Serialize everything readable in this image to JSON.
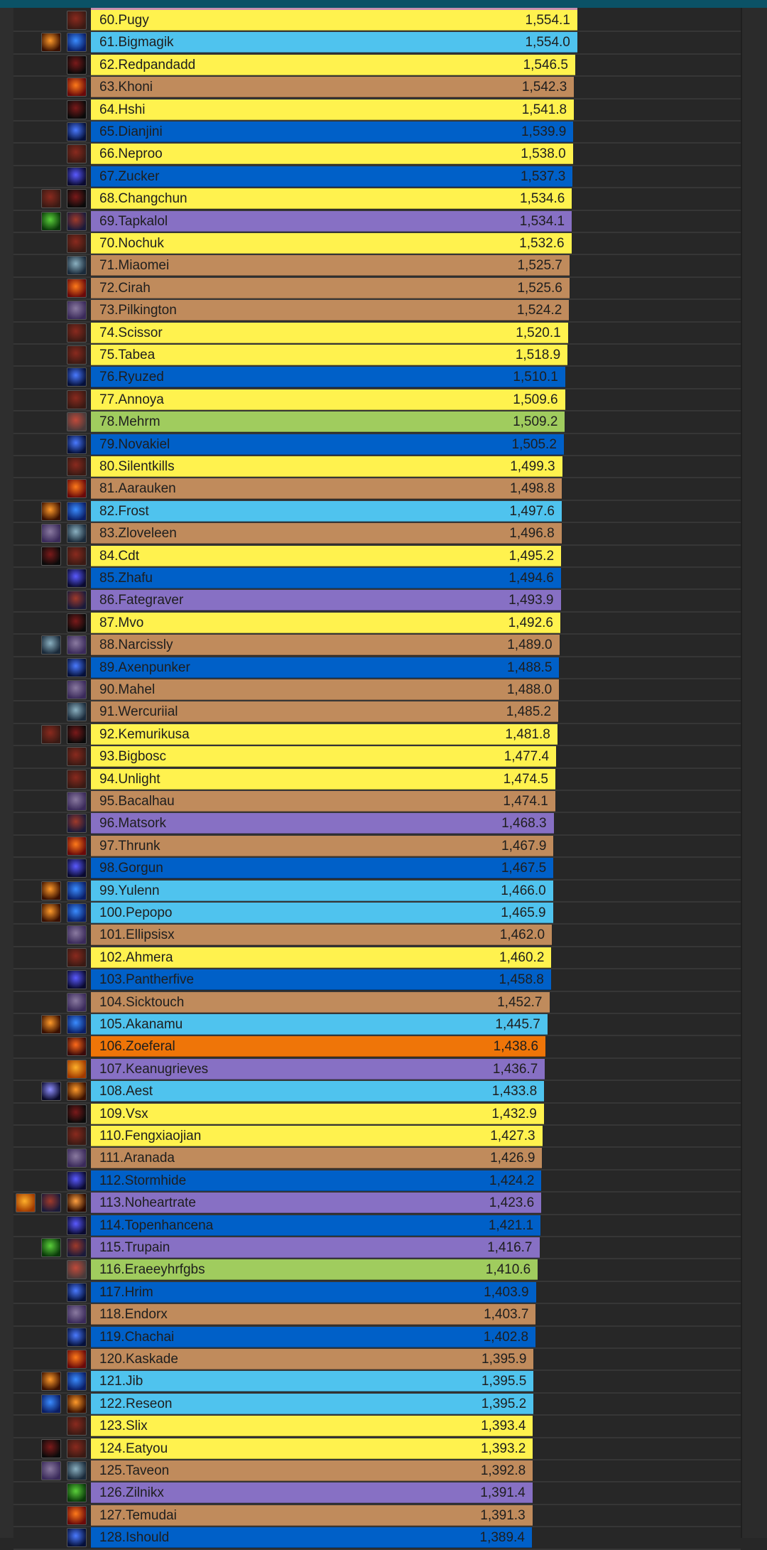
{
  "class_colors": {
    "rogue": "#fff24e",
    "mage": "#4fc3ee",
    "warrior": "#c08b5c",
    "shaman": "#0060c8",
    "warlock": "#8770c4",
    "hunter": "#a0cc5e",
    "druid": "#ef7508"
  },
  "icon_colors": {
    "rogue-face-icon": [
      "#8a2a1e",
      "#3a1a14"
    ],
    "fire-icon": [
      "#ff9a2a",
      "#3a1000"
    ],
    "frost-icon": [
      "#3a8cff",
      "#0a1e66"
    ],
    "blade-icon": [
      "#7a1a1a",
      "#0a0a0a"
    ],
    "fury-icon": [
      "#ff7a1a",
      "#6a0a0a"
    ],
    "lightning-icon": [
      "#4a7aff",
      "#05103a"
    ],
    "shield-icon": [
      "#5a5aff",
      "#0a0a30"
    ],
    "mace-icon": [
      "#8a7aa0",
      "#3a2a5a"
    ],
    "sword-icon": [
      "#8ab0c0",
      "#1a2a3a"
    ],
    "demon-icon": [
      "#a03a2a",
      "#1a1a3a"
    ],
    "green-beast-icon": [
      "#5ad03a",
      "#0a3a0a"
    ],
    "axe-icon": [
      "#c04a3a",
      "#4a3a3a"
    ],
    "druid-icon": [
      "#ff6a1a",
      "#3a0a0a"
    ],
    "skull-icon": [
      "#ffb02a",
      "#a03a00"
    ],
    "fire-bolts-icon": [
      "#ffa040",
      "#2a0a00"
    ],
    "frost-spear-icon": [
      "#9090ff",
      "#0a0a2a"
    ]
  },
  "rows": [
    {
      "label": "60.Pugy",
      "value": "1,554.1",
      "v": 1554.1,
      "cls": "rogue",
      "icons": [
        "rogue-face-icon"
      ]
    },
    {
      "label": "61.Bigmagik",
      "value": "1,554.0",
      "v": 1554.0,
      "cls": "mage",
      "icons": [
        "fire-icon",
        "frost-icon"
      ]
    },
    {
      "label": "62.Redpandadd",
      "value": "1,546.5",
      "v": 1546.5,
      "cls": "rogue",
      "icons": [
        "blade-icon"
      ]
    },
    {
      "label": "63.Khoni",
      "value": "1,542.3",
      "v": 1542.3,
      "cls": "warrior",
      "icons": [
        "fury-icon"
      ]
    },
    {
      "label": "64.Hshi",
      "value": "1,541.8",
      "v": 1541.8,
      "cls": "rogue",
      "icons": [
        "blade-icon"
      ]
    },
    {
      "label": "65.Dianjini",
      "value": "1,539.9",
      "v": 1539.9,
      "cls": "shaman",
      "icons": [
        "lightning-icon"
      ]
    },
    {
      "label": "66.Neproo",
      "value": "1,538.0",
      "v": 1538.0,
      "cls": "rogue",
      "icons": [
        "rogue-face-icon"
      ]
    },
    {
      "label": "67.Zucker",
      "value": "1,537.3",
      "v": 1537.3,
      "cls": "shaman",
      "icons": [
        "shield-icon"
      ]
    },
    {
      "label": "68.Changchun",
      "value": "1,534.6",
      "v": 1534.6,
      "cls": "rogue",
      "icons": [
        "rogue-face-icon",
        "blade-icon"
      ]
    },
    {
      "label": "69.Tapkalol",
      "value": "1,534.1",
      "v": 1534.1,
      "cls": "warlock",
      "icons": [
        "green-beast-icon",
        "demon-icon"
      ]
    },
    {
      "label": "70.Nochuk",
      "value": "1,532.6",
      "v": 1532.6,
      "cls": "rogue",
      "icons": [
        "rogue-face-icon"
      ]
    },
    {
      "label": "71.Miaomei",
      "value": "1,525.7",
      "v": 1525.7,
      "cls": "warrior",
      "icons": [
        "sword-icon"
      ]
    },
    {
      "label": "72.Cirah",
      "value": "1,525.6",
      "v": 1525.6,
      "cls": "warrior",
      "icons": [
        "fury-icon"
      ]
    },
    {
      "label": "73.Pilkington",
      "value": "1,524.2",
      "v": 1524.2,
      "cls": "warrior",
      "icons": [
        "mace-icon"
      ]
    },
    {
      "label": "74.Scissor",
      "value": "1,520.1",
      "v": 1520.1,
      "cls": "rogue",
      "icons": [
        "rogue-face-icon"
      ]
    },
    {
      "label": "75.Tabea",
      "value": "1,518.9",
      "v": 1518.9,
      "cls": "rogue",
      "icons": [
        "rogue-face-icon"
      ]
    },
    {
      "label": "76.Ryuzed",
      "value": "1,510.1",
      "v": 1510.1,
      "cls": "shaman",
      "icons": [
        "lightning-icon"
      ]
    },
    {
      "label": "77.Annoya",
      "value": "1,509.6",
      "v": 1509.6,
      "cls": "rogue",
      "icons": [
        "rogue-face-icon"
      ]
    },
    {
      "label": "78.Mehrm",
      "value": "1,509.2",
      "v": 1509.2,
      "cls": "hunter",
      "icons": [
        "axe-icon"
      ]
    },
    {
      "label": "79.Novakiel",
      "value": "1,505.2",
      "v": 1505.2,
      "cls": "shaman",
      "icons": [
        "lightning-icon"
      ]
    },
    {
      "label": "80.Silentkills",
      "value": "1,499.3",
      "v": 1499.3,
      "cls": "rogue",
      "icons": [
        "rogue-face-icon"
      ]
    },
    {
      "label": "81.Aarauken",
      "value": "1,498.8",
      "v": 1498.8,
      "cls": "warrior",
      "icons": [
        "fury-icon"
      ]
    },
    {
      "label": "82.Frost",
      "value": "1,497.6",
      "v": 1497.6,
      "cls": "mage",
      "icons": [
        "fire-icon",
        "frost-icon"
      ]
    },
    {
      "label": "83.Zloveleen",
      "value": "1,496.8",
      "v": 1496.8,
      "cls": "warrior",
      "icons": [
        "mace-icon",
        "sword-icon"
      ]
    },
    {
      "label": "84.Cdt",
      "value": "1,495.2",
      "v": 1495.2,
      "cls": "rogue",
      "icons": [
        "blade-icon",
        "rogue-face-icon"
      ]
    },
    {
      "label": "85.Zhafu",
      "value": "1,494.6",
      "v": 1494.6,
      "cls": "shaman",
      "icons": [
        "shield-icon"
      ]
    },
    {
      "label": "86.Fategraver",
      "value": "1,493.9",
      "v": 1493.9,
      "cls": "warlock",
      "icons": [
        "demon-icon"
      ]
    },
    {
      "label": "87.Mvo",
      "value": "1,492.6",
      "v": 1492.6,
      "cls": "rogue",
      "icons": [
        "blade-icon"
      ]
    },
    {
      "label": "88.Narcissly",
      "value": "1,489.0",
      "v": 1489.0,
      "cls": "warrior",
      "icons": [
        "sword-icon",
        "mace-icon"
      ]
    },
    {
      "label": "89.Axenpunker",
      "value": "1,488.5",
      "v": 1488.5,
      "cls": "shaman",
      "icons": [
        "lightning-icon"
      ]
    },
    {
      "label": "90.Mahel",
      "value": "1,488.0",
      "v": 1488.0,
      "cls": "warrior",
      "icons": [
        "mace-icon"
      ]
    },
    {
      "label": "91.Wercuriial",
      "value": "1,485.2",
      "v": 1485.2,
      "cls": "warrior",
      "icons": [
        "sword-icon"
      ]
    },
    {
      "label": "92.Kemurikusa",
      "value": "1,481.8",
      "v": 1481.8,
      "cls": "rogue",
      "icons": [
        "rogue-face-icon",
        "blade-icon"
      ]
    },
    {
      "label": "93.Bigbosc",
      "value": "1,477.4",
      "v": 1477.4,
      "cls": "rogue",
      "icons": [
        "rogue-face-icon"
      ]
    },
    {
      "label": "94.Unlight",
      "value": "1,474.5",
      "v": 1474.5,
      "cls": "rogue",
      "icons": [
        "rogue-face-icon"
      ]
    },
    {
      "label": "95.Bacalhau",
      "value": "1,474.1",
      "v": 1474.1,
      "cls": "warrior",
      "icons": [
        "mace-icon"
      ]
    },
    {
      "label": "96.Matsork",
      "value": "1,468.3",
      "v": 1468.3,
      "cls": "warlock",
      "icons": [
        "demon-icon"
      ]
    },
    {
      "label": "97.Thrunk",
      "value": "1,467.9",
      "v": 1467.9,
      "cls": "warrior",
      "icons": [
        "fury-icon"
      ]
    },
    {
      "label": "98.Gorgun",
      "value": "1,467.5",
      "v": 1467.5,
      "cls": "shaman",
      "icons": [
        "shield-icon"
      ]
    },
    {
      "label": "99.Yulenn",
      "value": "1,466.0",
      "v": 1466.0,
      "cls": "mage",
      "icons": [
        "fire-icon",
        "frost-icon"
      ]
    },
    {
      "label": "100.Pepopo",
      "value": "1,465.9",
      "v": 1465.9,
      "cls": "mage",
      "icons": [
        "fire-icon",
        "frost-icon"
      ]
    },
    {
      "label": "101.Ellipsisx",
      "value": "1,462.0",
      "v": 1462.0,
      "cls": "warrior",
      "icons": [
        "mace-icon"
      ]
    },
    {
      "label": "102.Ahmera",
      "value": "1,460.2",
      "v": 1460.2,
      "cls": "rogue",
      "icons": [
        "rogue-face-icon"
      ]
    },
    {
      "label": "103.Pantherfive",
      "value": "1,458.8",
      "v": 1458.8,
      "cls": "shaman",
      "icons": [
        "shield-icon"
      ]
    },
    {
      "label": "104.Sicktouch",
      "value": "1,452.7",
      "v": 1452.7,
      "cls": "warrior",
      "icons": [
        "mace-icon"
      ]
    },
    {
      "label": "105.Akanamu",
      "value": "1,445.7",
      "v": 1445.7,
      "cls": "mage",
      "icons": [
        "fire-icon",
        "frost-icon"
      ]
    },
    {
      "label": "106.Zoeferal",
      "value": "1,438.6",
      "v": 1438.6,
      "cls": "druid",
      "icons": [
        "druid-icon"
      ]
    },
    {
      "label": "107.Keanugrieves",
      "value": "1,436.7",
      "v": 1436.7,
      "cls": "warlock",
      "icons": [
        "skull-icon"
      ]
    },
    {
      "label": "108.Aest",
      "value": "1,433.8",
      "v": 1433.8,
      "cls": "mage",
      "icons": [
        "frost-spear-icon",
        "fire-icon"
      ]
    },
    {
      "label": "109.Vsx",
      "value": "1,432.9",
      "v": 1432.9,
      "cls": "rogue",
      "icons": [
        "blade-icon"
      ]
    },
    {
      "label": "110.Fengxiaojian",
      "value": "1,427.3",
      "v": 1427.3,
      "cls": "rogue",
      "icons": [
        "rogue-face-icon"
      ]
    },
    {
      "label": "111.Aranada",
      "value": "1,426.9",
      "v": 1426.9,
      "cls": "warrior",
      "icons": [
        "mace-icon"
      ]
    },
    {
      "label": "112.Stormhide",
      "value": "1,424.2",
      "v": 1424.2,
      "cls": "shaman",
      "icons": [
        "shield-icon"
      ]
    },
    {
      "label": "113.Noheartrate",
      "value": "1,423.6",
      "v": 1423.6,
      "cls": "warlock",
      "icons": [
        "skull-icon",
        "demon-icon",
        "fire-bolts-icon"
      ]
    },
    {
      "label": "114.Topenhancena",
      "value": "1,421.1",
      "v": 1421.1,
      "cls": "shaman",
      "icons": [
        "shield-icon"
      ]
    },
    {
      "label": "115.Trupain",
      "value": "1,416.7",
      "v": 1416.7,
      "cls": "warlock",
      "icons": [
        "green-beast-icon",
        "demon-icon"
      ]
    },
    {
      "label": "116.Eraeeyhrfgbs",
      "value": "1,410.6",
      "v": 1410.6,
      "cls": "hunter",
      "icons": [
        "axe-icon"
      ]
    },
    {
      "label": "117.Hrim",
      "value": "1,403.9",
      "v": 1403.9,
      "cls": "shaman",
      "icons": [
        "lightning-icon"
      ]
    },
    {
      "label": "118.Endorx",
      "value": "1,403.7",
      "v": 1403.7,
      "cls": "warrior",
      "icons": [
        "mace-icon"
      ]
    },
    {
      "label": "119.Chachai",
      "value": "1,402.8",
      "v": 1402.8,
      "cls": "shaman",
      "icons": [
        "lightning-icon"
      ]
    },
    {
      "label": "120.Kaskade",
      "value": "1,395.9",
      "v": 1395.9,
      "cls": "warrior",
      "icons": [
        "fury-icon"
      ]
    },
    {
      "label": "121.Jib",
      "value": "1,395.5",
      "v": 1395.5,
      "cls": "mage",
      "icons": [
        "fire-icon",
        "frost-icon"
      ]
    },
    {
      "label": "122.Reseon",
      "value": "1,395.2",
      "v": 1395.2,
      "cls": "mage",
      "icons": [
        "frost-icon",
        "fire-icon"
      ]
    },
    {
      "label": "123.Slix",
      "value": "1,393.4",
      "v": 1393.4,
      "cls": "rogue",
      "icons": [
        "rogue-face-icon"
      ]
    },
    {
      "label": "124.Eatyou",
      "value": "1,393.2",
      "v": 1393.2,
      "cls": "rogue",
      "icons": [
        "blade-icon",
        "rogue-face-icon"
      ]
    },
    {
      "label": "125.Taveon",
      "value": "1,392.8",
      "v": 1392.8,
      "cls": "warrior",
      "icons": [
        "mace-icon",
        "sword-icon"
      ]
    },
    {
      "label": "126.Zilnikx",
      "value": "1,391.4",
      "v": 1391.4,
      "cls": "warlock",
      "icons": [
        "green-beast-icon"
      ]
    },
    {
      "label": "127.Temudai",
      "value": "1,391.3",
      "v": 1391.3,
      "cls": "warrior",
      "icons": [
        "fury-icon"
      ]
    },
    {
      "label": "128.Ishould",
      "value": "1,389.4",
      "v": 1389.4,
      "cls": "shaman",
      "icons": [
        "lightning-icon"
      ]
    }
  ]
}
